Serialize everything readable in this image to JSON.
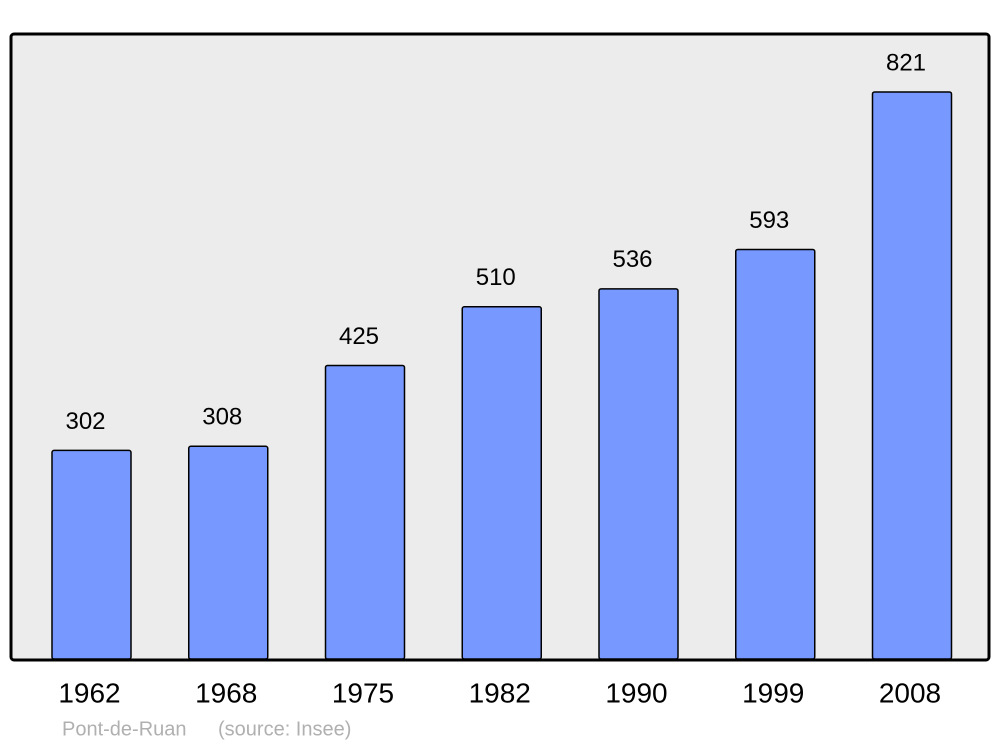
{
  "chart_data": {
    "type": "bar",
    "categories": [
      "1962",
      "1968",
      "1975",
      "1982",
      "1990",
      "1999",
      "2008"
    ],
    "values": [
      302,
      308,
      425,
      510,
      536,
      593,
      821
    ],
    "color": "#7799ff",
    "caption": "Pont-de-Ruan",
    "source": "(source: Insee)"
  }
}
